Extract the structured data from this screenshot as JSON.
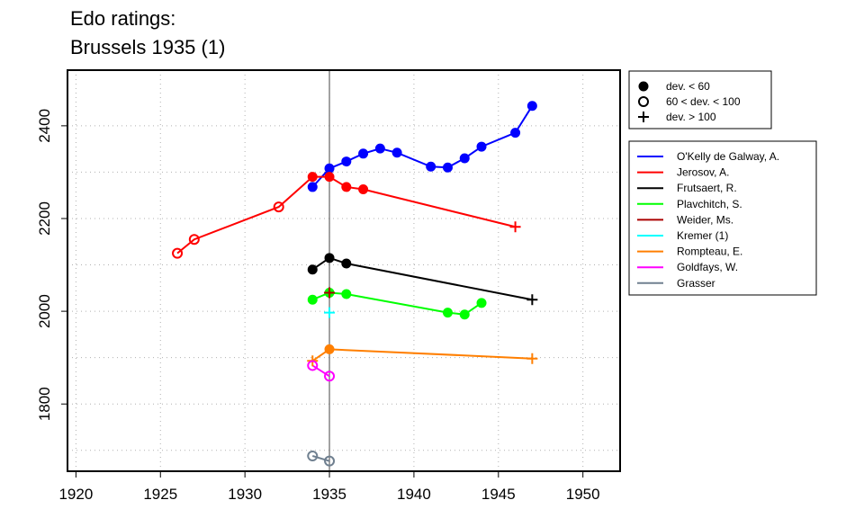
{
  "chart_data": {
    "type": "line",
    "title": "Edo ratings:",
    "subtitle": "Brussels 1935 (1)",
    "xlabel": "",
    "ylabel": "",
    "xlim": [
      1919.5,
      1952.2
    ],
    "ylim": [
      1655,
      2520
    ],
    "xticks": [
      1920,
      1925,
      1930,
      1935,
      1940,
      1945,
      1950
    ],
    "yticks": [
      1800,
      2000,
      2200,
      2400
    ],
    "grid_x": [
      1920,
      1925,
      1930,
      1935,
      1940,
      1945,
      1950
    ],
    "grid_y": [
      1700,
      1800,
      1900,
      2000,
      2100,
      2200,
      2300,
      2400
    ],
    "reference_line_x": 1935,
    "marker_legend": [
      {
        "symbol": "filled",
        "label": "dev. < 60"
      },
      {
        "symbol": "open",
        "label": "60 < dev. < 100"
      },
      {
        "symbol": "plus",
        "label": "dev. > 100"
      }
    ],
    "series": [
      {
        "name": "O'Kelly de Galway, A.",
        "color": "#0000ff",
        "points": [
          [
            1934,
            2268,
            "filled"
          ],
          [
            1935,
            2308,
            "filled"
          ],
          [
            1936,
            2323,
            "filled"
          ],
          [
            1937,
            2340,
            "filled"
          ],
          [
            1938,
            2351,
            "filled"
          ],
          [
            1939,
            2342,
            "filled"
          ],
          [
            1941,
            2312,
            "filled"
          ],
          [
            1942,
            2310,
            "filled"
          ],
          [
            1943,
            2330,
            "filled"
          ],
          [
            1944,
            2355,
            "filled"
          ],
          [
            1946,
            2385,
            "filled"
          ],
          [
            1947,
            2443,
            "filled"
          ]
        ]
      },
      {
        "name": "Jerosov, A.",
        "color": "#ff0000",
        "points": [
          [
            1926,
            2125,
            "open"
          ],
          [
            1927,
            2155,
            "open"
          ],
          [
            1932,
            2225,
            "open"
          ],
          [
            1934,
            2290,
            "filled"
          ],
          [
            1935,
            2290,
            "filled"
          ],
          [
            1936,
            2268,
            "filled"
          ],
          [
            1937,
            2263,
            "filled"
          ],
          [
            1946,
            2182,
            "plus"
          ]
        ]
      },
      {
        "name": "Frutsaert, R.",
        "color": "#000000",
        "points": [
          [
            1934,
            2090,
            "filled"
          ],
          [
            1935,
            2115,
            "filled"
          ],
          [
            1936,
            2103,
            "filled"
          ],
          [
            1947,
            2025,
            "plus"
          ]
        ]
      },
      {
        "name": "Plavchitch, S.",
        "color": "#00ff00",
        "points": [
          [
            1934,
            2025,
            "filled"
          ],
          [
            1935,
            2040,
            "filled"
          ],
          [
            1936,
            2037,
            "filled"
          ],
          [
            1942,
            1997,
            "filled"
          ],
          [
            1943,
            1993,
            "filled"
          ],
          [
            1944,
            2018,
            "filled"
          ]
        ]
      },
      {
        "name": "Weider, Ms.",
        "color": "#aa0000",
        "points": [
          [
            1935,
            2040,
            "plus"
          ]
        ]
      },
      {
        "name": "Kremer (1)",
        "color": "#00ffff",
        "points": [
          [
            1935,
            1997,
            "plus"
          ]
        ]
      },
      {
        "name": "Rompteau, E.",
        "color": "#ff7f00",
        "points": [
          [
            1934,
            1893,
            "plus"
          ],
          [
            1935,
            1918,
            "filled"
          ],
          [
            1947,
            1898,
            "plus"
          ]
        ]
      },
      {
        "name": "Goldfays, W.",
        "color": "#ff00ff",
        "points": [
          [
            1934,
            1883,
            "open"
          ],
          [
            1935,
            1860,
            "open"
          ]
        ]
      },
      {
        "name": "Grasser",
        "color": "#708090",
        "points": [
          [
            1934,
            1688,
            "open"
          ],
          [
            1935,
            1677,
            "open"
          ]
        ]
      }
    ]
  }
}
